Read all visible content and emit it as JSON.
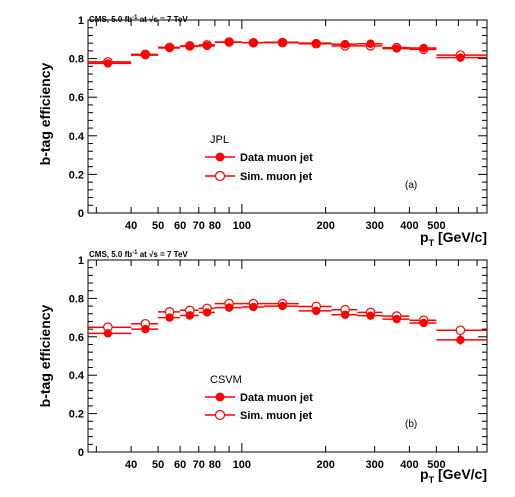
{
  "chart_data": [
    {
      "type": "scatter",
      "panel_tag": "(a)",
      "banner": {
        "prefix": "CMS, 5.0 fb",
        "sup": "-1",
        "suffix": " at √s = 7 TeV"
      },
      "title": "",
      "xlabel": "p",
      "xlabel_sub": "T",
      "xlabel_unit": " [GeV/c]",
      "ylabel": "b-tag efficiency",
      "xscale": "log",
      "xlim": [
        28,
        760
      ],
      "ylim": [
        0,
        1
      ],
      "x_ticks": [
        "40",
        "50",
        "60",
        "70",
        "80",
        "100",
        "200",
        "300",
        "400",
        "500"
      ],
      "y_ticks": [
        "0",
        "0.2",
        "0.4",
        "0.6",
        "0.8",
        "1"
      ],
      "legend_title": "JPL",
      "legend_placement": "center-left",
      "series": [
        {
          "name": "Data muon jet",
          "marker": "filled-circle",
          "color": "#ff0000",
          "points": [
            {
              "x": 33,
              "xlo": 28,
              "xhi": 40,
              "y": 0.775
            },
            {
              "x": 45,
              "xlo": 40,
              "xhi": 50,
              "y": 0.818
            },
            {
              "x": 55,
              "xlo": 50,
              "xhi": 60,
              "y": 0.855
            },
            {
              "x": 65,
              "xlo": 60,
              "xhi": 70,
              "y": 0.864
            },
            {
              "x": 75,
              "xlo": 70,
              "xhi": 80,
              "y": 0.866
            },
            {
              "x": 90,
              "xlo": 80,
              "xhi": 100,
              "y": 0.885
            },
            {
              "x": 110,
              "xlo": 100,
              "xhi": 120,
              "y": 0.883
            },
            {
              "x": 140,
              "xlo": 120,
              "xhi": 160,
              "y": 0.885
            },
            {
              "x": 185,
              "xlo": 160,
              "xhi": 210,
              "y": 0.88
            },
            {
              "x": 235,
              "xlo": 210,
              "xhi": 260,
              "y": 0.875
            },
            {
              "x": 290,
              "xlo": 260,
              "xhi": 320,
              "y": 0.877
            },
            {
              "x": 360,
              "xlo": 320,
              "xhi": 400,
              "y": 0.852
            },
            {
              "x": 450,
              "xlo": 400,
              "xhi": 500,
              "y": 0.855
            },
            {
              "x": 610,
              "xlo": 500,
              "xhi": 760,
              "y": 0.805,
              "yerr": 0.022
            }
          ]
        },
        {
          "name": "Sim. muon jet",
          "marker": "open-circle",
          "color": "#ff0000",
          "points": [
            {
              "x": 33,
              "xlo": 28,
              "xhi": 40,
              "y": 0.783
            },
            {
              "x": 45,
              "xlo": 40,
              "xhi": 50,
              "y": 0.822
            },
            {
              "x": 55,
              "xlo": 50,
              "xhi": 60,
              "y": 0.858
            },
            {
              "x": 65,
              "xlo": 60,
              "xhi": 70,
              "y": 0.866
            },
            {
              "x": 75,
              "xlo": 70,
              "xhi": 80,
              "y": 0.871
            },
            {
              "x": 90,
              "xlo": 80,
              "xhi": 100,
              "y": 0.886
            },
            {
              "x": 110,
              "xlo": 100,
              "xhi": 120,
              "y": 0.882
            },
            {
              "x": 140,
              "xlo": 120,
              "xhi": 160,
              "y": 0.883
            },
            {
              "x": 185,
              "xlo": 160,
              "xhi": 210,
              "y": 0.877
            },
            {
              "x": 235,
              "xlo": 210,
              "xhi": 260,
              "y": 0.866
            },
            {
              "x": 290,
              "xlo": 260,
              "xhi": 320,
              "y": 0.866
            },
            {
              "x": 360,
              "xlo": 320,
              "xhi": 400,
              "y": 0.857
            },
            {
              "x": 450,
              "xlo": 400,
              "xhi": 500,
              "y": 0.848
            },
            {
              "x": 610,
              "xlo": 500,
              "xhi": 760,
              "y": 0.818
            }
          ]
        }
      ]
    },
    {
      "type": "scatter",
      "panel_tag": "(b)",
      "banner": {
        "prefix": "CMS, 5.0 fb",
        "sup": "-1",
        "suffix": " at √s = 7 TeV"
      },
      "title": "",
      "xlabel": "p",
      "xlabel_sub": "T",
      "xlabel_unit": " [GeV/c]",
      "ylabel": "b-tag efficiency",
      "xscale": "log",
      "xlim": [
        28,
        760
      ],
      "ylim": [
        0,
        1
      ],
      "x_ticks": [
        "40",
        "50",
        "60",
        "70",
        "80",
        "100",
        "200",
        "300",
        "400",
        "500"
      ],
      "y_ticks": [
        "0",
        "0.2",
        "0.4",
        "0.6",
        "0.8",
        "1"
      ],
      "legend_title": "CSVM",
      "legend_placement": "center-left",
      "series": [
        {
          "name": "Data muon jet",
          "marker": "filled-circle",
          "color": "#ff0000",
          "points": [
            {
              "x": 33,
              "xlo": 28,
              "xhi": 40,
              "y": 0.618
            },
            {
              "x": 45,
              "xlo": 40,
              "xhi": 50,
              "y": 0.64
            },
            {
              "x": 55,
              "xlo": 50,
              "xhi": 60,
              "y": 0.7
            },
            {
              "x": 65,
              "xlo": 60,
              "xhi": 70,
              "y": 0.711
            },
            {
              "x": 75,
              "xlo": 70,
              "xhi": 80,
              "y": 0.727
            },
            {
              "x": 90,
              "xlo": 80,
              "xhi": 100,
              "y": 0.752
            },
            {
              "x": 110,
              "xlo": 100,
              "xhi": 120,
              "y": 0.755
            },
            {
              "x": 140,
              "xlo": 120,
              "xhi": 160,
              "y": 0.76
            },
            {
              "x": 185,
              "xlo": 160,
              "xhi": 210,
              "y": 0.735
            },
            {
              "x": 235,
              "xlo": 210,
              "xhi": 260,
              "y": 0.715
            },
            {
              "x": 290,
              "xlo": 260,
              "xhi": 320,
              "y": 0.71
            },
            {
              "x": 360,
              "xlo": 320,
              "xhi": 400,
              "y": 0.692
            },
            {
              "x": 450,
              "xlo": 400,
              "xhi": 500,
              "y": 0.672
            },
            {
              "x": 610,
              "xlo": 500,
              "xhi": 760,
              "y": 0.584,
              "yerr": 0.025
            }
          ]
        },
        {
          "name": "Sim. muon jet",
          "marker": "open-circle",
          "color": "#ff0000",
          "points": [
            {
              "x": 33,
              "xlo": 28,
              "xhi": 40,
              "y": 0.65
            },
            {
              "x": 45,
              "xlo": 40,
              "xhi": 50,
              "y": 0.668
            },
            {
              "x": 55,
              "xlo": 50,
              "xhi": 60,
              "y": 0.73
            },
            {
              "x": 65,
              "xlo": 60,
              "xhi": 70,
              "y": 0.738
            },
            {
              "x": 75,
              "xlo": 70,
              "xhi": 80,
              "y": 0.748
            },
            {
              "x": 90,
              "xlo": 80,
              "xhi": 100,
              "y": 0.773
            },
            {
              "x": 110,
              "xlo": 100,
              "xhi": 120,
              "y": 0.773
            },
            {
              "x": 140,
              "xlo": 120,
              "xhi": 160,
              "y": 0.773
            },
            {
              "x": 185,
              "xlo": 160,
              "xhi": 210,
              "y": 0.758
            },
            {
              "x": 235,
              "xlo": 210,
              "xhi": 260,
              "y": 0.741
            },
            {
              "x": 290,
              "xlo": 260,
              "xhi": 320,
              "y": 0.727
            },
            {
              "x": 360,
              "xlo": 320,
              "xhi": 400,
              "y": 0.708
            },
            {
              "x": 450,
              "xlo": 400,
              "xhi": 500,
              "y": 0.686
            },
            {
              "x": 610,
              "xlo": 500,
              "xhi": 760,
              "y": 0.634
            }
          ]
        }
      ]
    }
  ]
}
